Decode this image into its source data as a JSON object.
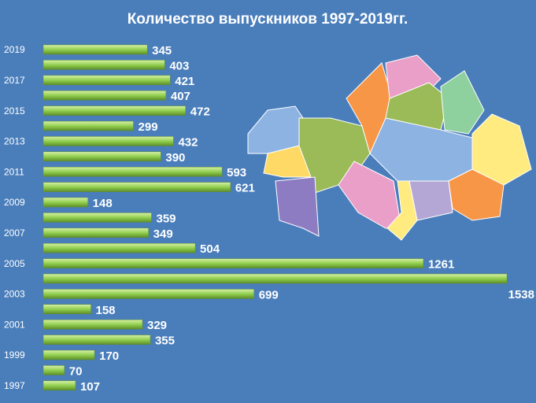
{
  "chart_data": {
    "type": "bar",
    "orientation": "horizontal",
    "title": "Количество выпускников  1997-2019гг.",
    "categories": [
      "2019",
      null,
      "2017",
      null,
      "2015",
      null,
      "2013",
      null,
      "2011",
      null,
      "2009",
      null,
      "2007",
      null,
      "2005",
      null,
      "2003",
      null,
      "2001",
      null,
      "1999",
      null,
      "1997"
    ],
    "values": [
      345,
      403,
      421,
      407,
      472,
      299,
      432,
      390,
      593,
      621,
      148,
      359,
      349,
      504,
      1261,
      1538,
      699,
      158,
      329,
      355,
      170,
      70,
      107
    ],
    "color": "#92d050"
  }
}
